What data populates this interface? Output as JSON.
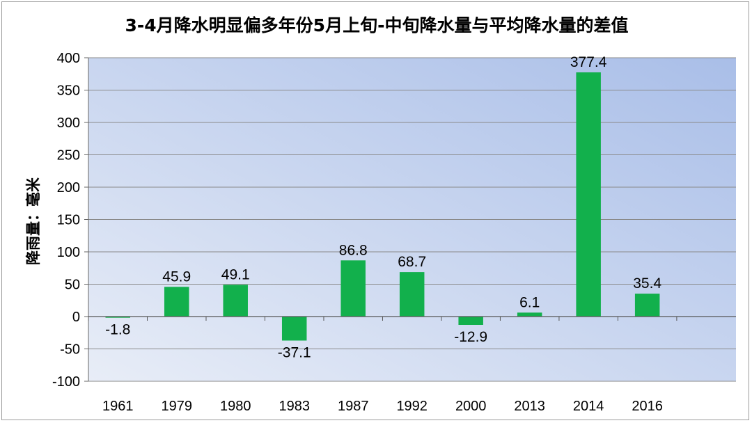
{
  "chart_data": {
    "type": "bar",
    "title": "3-4月降水明显偏多年份5月上旬-中旬降水量与平均降水量的差值",
    "xlabel": "",
    "ylabel": "降雨量：毫米",
    "categories": [
      "1961",
      "1979",
      "1980",
      "1983",
      "1987",
      "1992",
      "2000",
      "2013",
      "2014",
      "2016"
    ],
    "values": [
      -1.8,
      45.9,
      49.1,
      -37.1,
      86.8,
      68.7,
      -12.9,
      6.1,
      377.4,
      35.4
    ],
    "data_labels": [
      "-1.8",
      "45.9",
      "49.1",
      "-37.1",
      "86.8",
      "68.7",
      "-12.9",
      "6.1",
      "377.4",
      "35.4"
    ],
    "ylim": [
      -100,
      400
    ],
    "yticks": [
      -100,
      -50,
      0,
      50,
      100,
      150,
      200,
      250,
      300,
      350,
      400
    ],
    "grid": true,
    "legend": "none",
    "colors": {
      "bar": "#12b04c",
      "plot_bg_top_right": "#a9bee8",
      "plot_bg_bottom_left": "#e8edf7",
      "grid": "#8a8a8a",
      "text": "#000000"
    }
  }
}
